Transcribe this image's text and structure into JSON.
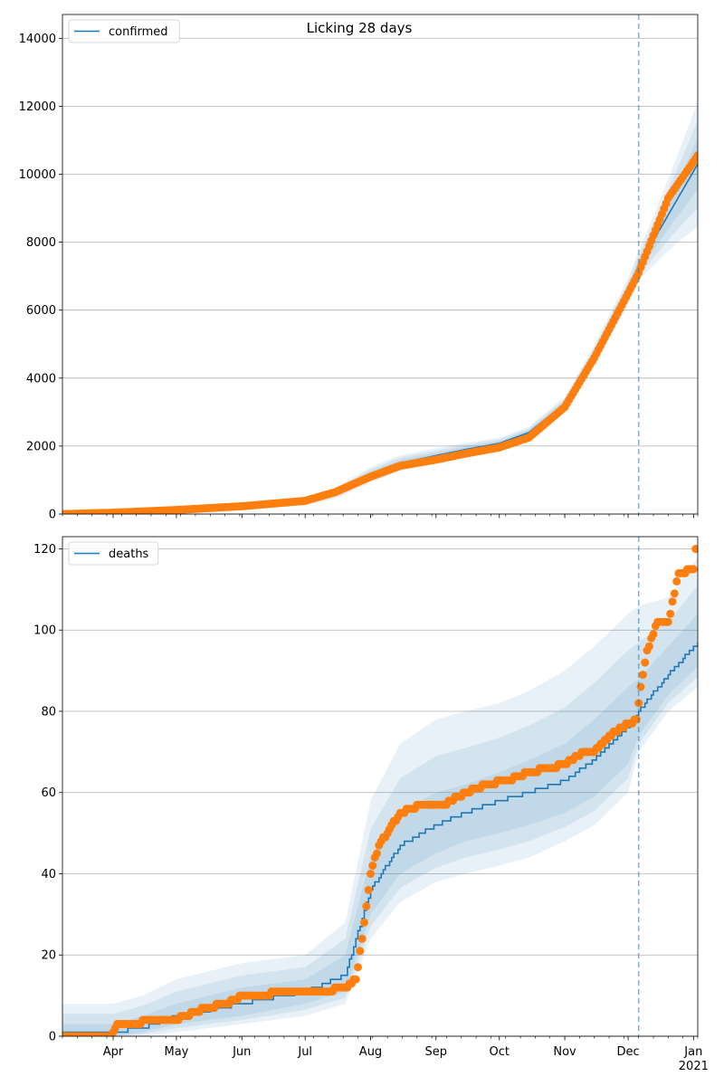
{
  "figure_title": "Licking 28 days",
  "colors": {
    "model_line": "#1f77b4",
    "observed": "#ff7f0e",
    "band": "#1f77b4",
    "grid": "#b0b0b0",
    "forecast_marker": "#1f77b4"
  },
  "x_axis": {
    "domain": [
      "2020-03-08",
      "2021-01-03"
    ],
    "month_labels": [
      {
        "date": "2020-04-01",
        "label": "Apr"
      },
      {
        "date": "2020-05-01",
        "label": "May"
      },
      {
        "date": "2020-06-01",
        "label": "Jun"
      },
      {
        "date": "2020-07-01",
        "label": "Jul"
      },
      {
        "date": "2020-08-01",
        "label": "Aug"
      },
      {
        "date": "2020-09-01",
        "label": "Sep"
      },
      {
        "date": "2020-10-01",
        "label": "Oct"
      },
      {
        "date": "2020-11-01",
        "label": "Nov"
      },
      {
        "date": "2020-12-01",
        "label": "Dec"
      },
      {
        "date": "2021-01-01",
        "label": "Jan"
      }
    ],
    "year_label": "2021",
    "forecast_start": "2020-12-06"
  },
  "chart_data": [
    {
      "type": "line",
      "legend": "confirmed",
      "legend_position": "upper-left",
      "grid": "y",
      "ylim": [
        0,
        14700
      ],
      "yticks": [
        0,
        2000,
        4000,
        6000,
        8000,
        10000,
        12000,
        14000
      ],
      "model": {
        "x": [
          "2020-03-08",
          "2020-04-01",
          "2020-05-01",
          "2020-06-01",
          "2020-07-01",
          "2020-07-15",
          "2020-08-01",
          "2020-08-15",
          "2020-09-01",
          "2020-09-15",
          "2020-10-01",
          "2020-10-15",
          "2020-11-01",
          "2020-11-15",
          "2020-12-01",
          "2020-12-06",
          "2020-12-20",
          "2021-01-03"
        ],
        "y": [
          0,
          40,
          120,
          230,
          390,
          600,
          1150,
          1500,
          1720,
          1900,
          2080,
          2400,
          3250,
          4700,
          6550,
          7300,
          8800,
          10300
        ],
        "band_halfwidth_frac": [
          0.4,
          0.4,
          0.4,
          0.35,
          0.3,
          0.25,
          0.2,
          0.15,
          0.12,
          0.1,
          0.08,
          0.07,
          0.06,
          0.06,
          0.06,
          0.06,
          0.12,
          0.18
        ]
      },
      "observed": {
        "x": [
          "2020-03-08",
          "2020-04-01",
          "2020-05-01",
          "2020-06-01",
          "2020-07-01",
          "2020-07-15",
          "2020-08-01",
          "2020-08-15",
          "2020-09-01",
          "2020-09-15",
          "2020-10-01",
          "2020-10-15",
          "2020-11-01",
          "2020-11-15",
          "2020-12-01",
          "2020-12-06",
          "2020-12-20",
          "2021-01-03"
        ],
        "y": [
          0,
          40,
          120,
          230,
          390,
          640,
          1100,
          1420,
          1600,
          1780,
          1960,
          2250,
          3150,
          4600,
          6500,
          7100,
          9300,
          10550
        ]
      }
    },
    {
      "type": "line",
      "legend": "deaths",
      "legend_position": "upper-left",
      "grid": "y",
      "ylim": [
        0,
        123
      ],
      "yticks": [
        0,
        20,
        40,
        60,
        80,
        100,
        120
      ],
      "model": {
        "x": [
          "2020-03-08",
          "2020-04-01",
          "2020-04-15",
          "2020-05-01",
          "2020-06-01",
          "2020-07-01",
          "2020-07-20",
          "2020-08-01",
          "2020-08-15",
          "2020-09-01",
          "2020-09-15",
          "2020-10-01",
          "2020-10-15",
          "2020-11-01",
          "2020-11-15",
          "2020-12-01",
          "2020-12-06",
          "2020-12-20",
          "2021-01-03"
        ],
        "y": [
          1,
          1,
          2,
          5,
          8,
          11,
          15,
          36,
          47,
          52,
          55,
          58,
          60,
          63,
          68,
          76,
          80,
          89,
          97
        ],
        "band_lo": [
          0,
          0,
          0,
          1,
          3,
          5,
          8,
          24,
          33,
          38,
          40,
          42,
          44,
          48,
          52,
          60,
          70,
          80,
          86
        ],
        "band_hi": [
          8,
          8,
          10,
          14,
          18,
          20,
          28,
          58,
          72,
          78,
          80,
          82,
          85,
          90,
          96,
          104,
          106,
          108,
          118
        ],
        "band_mid_lo": [
          0,
          0,
          1,
          3,
          5,
          8,
          11,
          30,
          40,
          45,
          48,
          50,
          52,
          55,
          59,
          67,
          74,
          84,
          91
        ],
        "band_mid_hi": [
          3,
          3,
          5,
          8,
          12,
          14,
          20,
          44,
          55,
          60,
          62,
          65,
          68,
          72,
          78,
          86,
          88,
          96,
          104
        ]
      },
      "observed": {
        "x": [
          "2020-03-08",
          "2020-03-31",
          "2020-04-03",
          "2020-04-10",
          "2020-04-20",
          "2020-05-01",
          "2020-05-05",
          "2020-05-15",
          "2020-05-25",
          "2020-06-01",
          "2020-06-10",
          "2020-06-20",
          "2020-07-01",
          "2020-07-10",
          "2020-07-20",
          "2020-07-25",
          "2020-07-28",
          "2020-08-01",
          "2020-08-05",
          "2020-08-10",
          "2020-08-15",
          "2020-08-25",
          "2020-09-05",
          "2020-09-15",
          "2020-09-25",
          "2020-10-05",
          "2020-10-15",
          "2020-10-25",
          "2020-11-01",
          "2020-11-10",
          "2020-11-15",
          "2020-11-25",
          "2020-12-05",
          "2020-12-07",
          "2020-12-10",
          "2020-12-15",
          "2020-12-20",
          "2020-12-25",
          "2021-01-01",
          "2021-01-02"
        ],
        "y": [
          0,
          0,
          3,
          3,
          4,
          4,
          5,
          7,
          8,
          10,
          10,
          11,
          11,
          11,
          12,
          14,
          24,
          40,
          47,
          51,
          55,
          57,
          57,
          60,
          62,
          63,
          65,
          66,
          67,
          70,
          70,
          75,
          78,
          86,
          95,
          102,
          102,
          114,
          115,
          120
        ]
      }
    }
  ]
}
